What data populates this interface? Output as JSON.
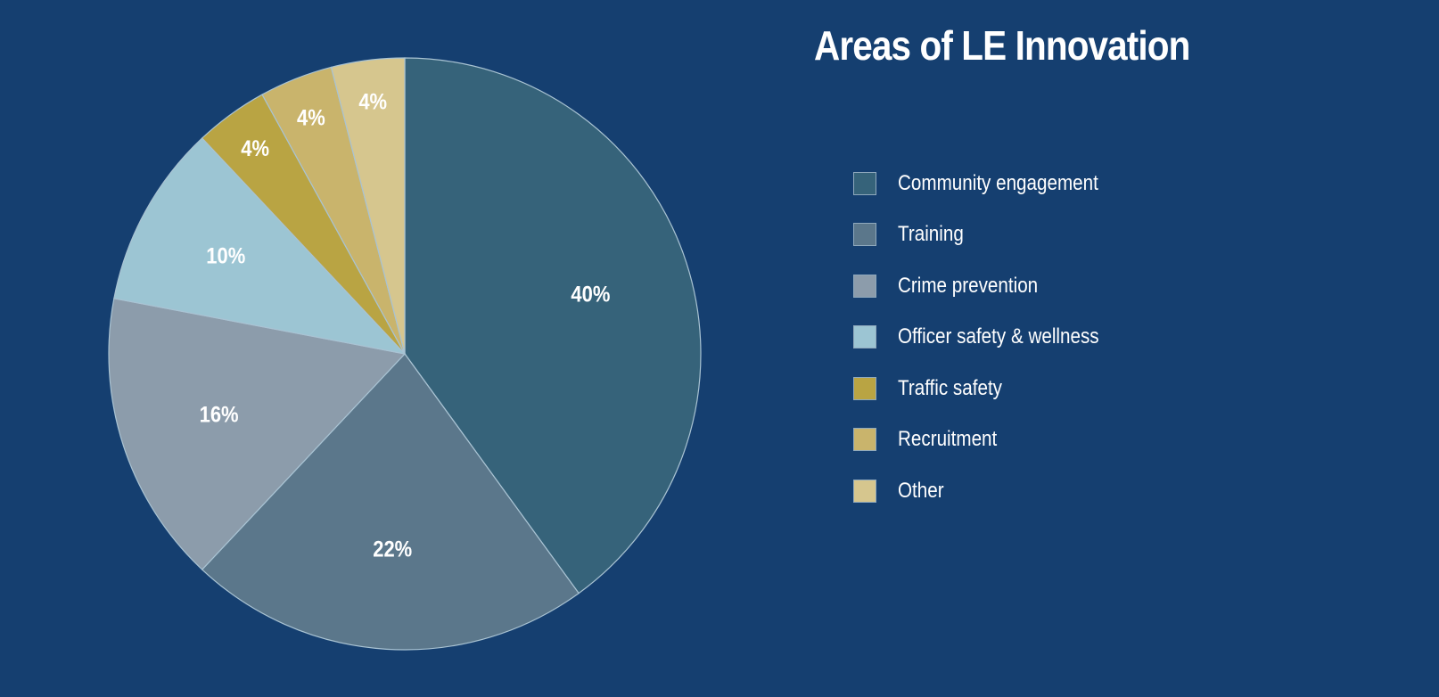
{
  "chart_data": {
    "type": "pie",
    "title": "Areas of LE Innovation",
    "start": "12 o'clock, clockwise",
    "legend_position": "right",
    "slices": [
      {
        "label": "Community engagement",
        "value": 40,
        "data_label": "40%",
        "color": "#36637a"
      },
      {
        "label": "Training",
        "value": 22,
        "data_label": "22%",
        "color": "#5b778b"
      },
      {
        "label": "Crime prevention",
        "value": 16,
        "data_label": "16%",
        "color": "#8c9cab"
      },
      {
        "label": "Officer safety & wellness",
        "value": 10,
        "data_label": "10%",
        "color": "#9cc5d3"
      },
      {
        "label": "Traffic safety",
        "value": 4,
        "data_label": "4%",
        "color": "#b9a443"
      },
      {
        "label": "Recruitment",
        "value": 4,
        "data_label": "4%",
        "color": "#c9b46c"
      },
      {
        "label": "Other",
        "value": 4,
        "data_label": "4%",
        "color": "#d6c68e"
      }
    ]
  },
  "colors": {
    "background": "#153f70",
    "slice_border": "#a9c3d3"
  }
}
